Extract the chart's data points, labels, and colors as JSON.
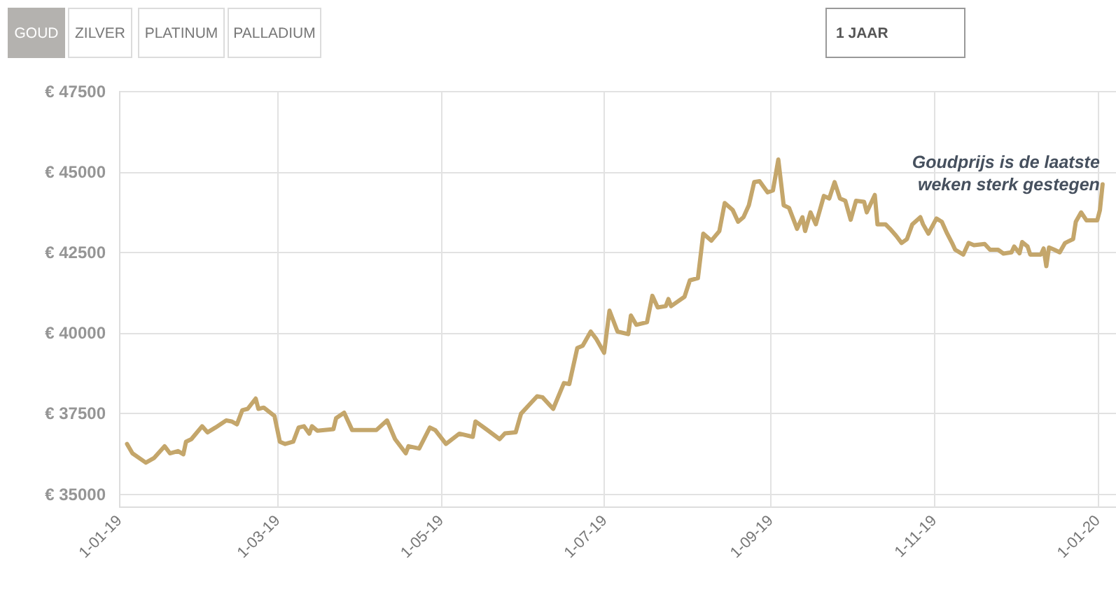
{
  "chart_data": {
    "type": "line",
    "x": [
      "2019-01-04",
      "2019-01-06",
      "2019-01-11",
      "2019-01-14",
      "2019-01-18",
      "2019-01-20",
      "2019-01-23",
      "2019-01-25",
      "2019-01-26",
      "2019-01-28",
      "2019-02-01",
      "2019-02-03",
      "2019-02-06",
      "2019-02-10",
      "2019-02-12",
      "2019-02-14",
      "2019-02-16",
      "2019-02-18",
      "2019-02-21",
      "2019-02-22",
      "2019-02-24",
      "2019-02-28",
      "2019-03-02",
      "2019-03-04",
      "2019-03-07",
      "2019-03-09",
      "2019-03-11",
      "2019-03-13",
      "2019-03-14",
      "2019-03-16",
      "2019-03-22",
      "2019-03-23",
      "2019-03-26",
      "2019-03-29",
      "2019-04-04",
      "2019-04-07",
      "2019-04-11",
      "2019-04-14",
      "2019-04-18",
      "2019-04-19",
      "2019-04-23",
      "2019-04-27",
      "2019-04-29",
      "2019-05-03",
      "2019-05-08",
      "2019-05-13",
      "2019-05-14",
      "2019-05-18",
      "2019-05-23",
      "2019-05-25",
      "2019-05-29",
      "2019-05-31",
      "2019-06-06",
      "2019-06-08",
      "2019-06-12",
      "2019-06-16",
      "2019-06-18",
      "2019-06-21",
      "2019-06-23",
      "2019-06-26",
      "2019-06-28",
      "2019-07-01",
      "2019-07-03",
      "2019-07-06",
      "2019-07-10",
      "2019-07-11",
      "2019-07-13",
      "2019-07-17",
      "2019-07-19",
      "2019-07-21",
      "2019-07-24",
      "2019-07-25",
      "2019-07-26",
      "2019-07-31",
      "2019-08-02",
      "2019-08-05",
      "2019-08-07",
      "2019-08-10",
      "2019-08-13",
      "2019-08-15",
      "2019-08-18",
      "2019-08-20",
      "2019-08-22",
      "2019-08-24",
      "2019-08-26",
      "2019-08-28",
      "2019-08-31",
      "2019-09-02",
      "2019-09-04",
      "2019-09-06",
      "2019-09-08",
      "2019-09-11",
      "2019-09-13",
      "2019-09-14",
      "2019-09-16",
      "2019-09-18",
      "2019-09-21",
      "2019-09-23",
      "2019-09-25",
      "2019-09-27",
      "2019-09-29",
      "2019-10-01",
      "2019-10-03",
      "2019-10-06",
      "2019-10-07",
      "2019-10-10",
      "2019-10-11",
      "2019-10-14",
      "2019-10-16",
      "2019-10-18",
      "2019-10-20",
      "2019-10-22",
      "2019-10-24",
      "2019-10-27",
      "2019-10-28",
      "2019-10-30",
      "2019-11-02",
      "2019-11-04",
      "2019-11-06",
      "2019-11-08",
      "2019-11-09",
      "2019-11-12",
      "2019-11-14",
      "2019-11-16",
      "2019-11-20",
      "2019-11-22",
      "2019-11-25",
      "2019-11-27",
      "2019-11-30",
      "2019-12-01",
      "2019-12-03",
      "2019-12-04",
      "2019-12-06",
      "2019-12-07",
      "2019-12-11",
      "2019-12-12",
      "2019-12-13",
      "2019-12-14",
      "2019-12-16",
      "2019-12-18",
      "2019-12-20",
      "2019-12-23",
      "2019-12-24",
      "2019-12-26",
      "2019-12-28",
      "2020-01-01",
      "2020-01-02",
      "2020-01-03"
    ],
    "series": [
      {
        "color": "#c4a66b",
        "values": [
          36540,
          36250,
          35960,
          36100,
          36470,
          36250,
          36320,
          36220,
          36610,
          36690,
          37090,
          36900,
          37050,
          37270,
          37240,
          37150,
          37590,
          37630,
          37950,
          37630,
          37670,
          37410,
          36610,
          36540,
          36610,
          37050,
          37090,
          36860,
          37090,
          36950,
          37000,
          37340,
          37510,
          36970,
          36970,
          36970,
          37270,
          36690,
          36250,
          36470,
          36400,
          37050,
          36970,
          36540,
          36860,
          36760,
          37240,
          37000,
          36690,
          36870,
          36900,
          37480,
          38020,
          37990,
          37630,
          38430,
          38400,
          39520,
          39590,
          40030,
          39810,
          39370,
          40680,
          40030,
          39950,
          40530,
          40240,
          40320,
          41140,
          40780,
          40820,
          41040,
          40820,
          41110,
          41620,
          41690,
          43070,
          42850,
          43150,
          44020,
          43800,
          43440,
          43580,
          43950,
          44670,
          44700,
          44350,
          44410,
          45370,
          43950,
          43870,
          43220,
          43580,
          43150,
          43730,
          43360,
          44240,
          44160,
          44670,
          44160,
          44090,
          43500,
          44090,
          44060,
          43730,
          44270,
          43360,
          43360,
          43190,
          43000,
          42780,
          42900,
          43360,
          43580,
          43360,
          43070,
          43540,
          43440,
          43070,
          42750,
          42570,
          42420,
          42780,
          42710,
          42750,
          42570,
          42570,
          42450,
          42490,
          42670,
          42460,
          42810,
          42670,
          42420,
          42420,
          42610,
          42060,
          42640,
          42570,
          42490,
          42780,
          42900,
          43440,
          43730,
          43480,
          43480,
          43800,
          44600
        ]
      }
    ],
    "xlim": [
      "2019-01-01",
      "2020-01-08"
    ],
    "xticks": [
      {
        "value": "2019-01-01",
        "label": "1-01-19"
      },
      {
        "value": "2019-03-01",
        "label": "1-03-19"
      },
      {
        "value": "2019-05-01",
        "label": "1-05-19"
      },
      {
        "value": "2019-07-01",
        "label": "1-07-19"
      },
      {
        "value": "2019-09-01",
        "label": "1-09-19"
      },
      {
        "value": "2019-11-01",
        "label": "1-11-19"
      },
      {
        "value": "2020-01-01",
        "label": "1-01-20"
      }
    ],
    "ylim": [
      34600,
      47500
    ],
    "yticks": [
      {
        "value": 35000,
        "label": "€ 35000"
      },
      {
        "value": 37500,
        "label": "€ 37500"
      },
      {
        "value": 40000,
        "label": "€ 40000"
      },
      {
        "value": 42500,
        "label": "€ 42500"
      },
      {
        "value": 45000,
        "label": "€ 45000"
      },
      {
        "value": 47500,
        "label": "€ 47500"
      }
    ],
    "grid": true,
    "line_style": "solid",
    "annotations": [
      "GOUD",
      "ZILVER",
      "PLATINUM",
      "PALLADIUM",
      "1 JAAR",
      {
        "text": "Goudprijs is de laatste\nweken sterk gestegen",
        "x": "2020-01-03",
        "y": 44600
      }
    ]
  }
}
